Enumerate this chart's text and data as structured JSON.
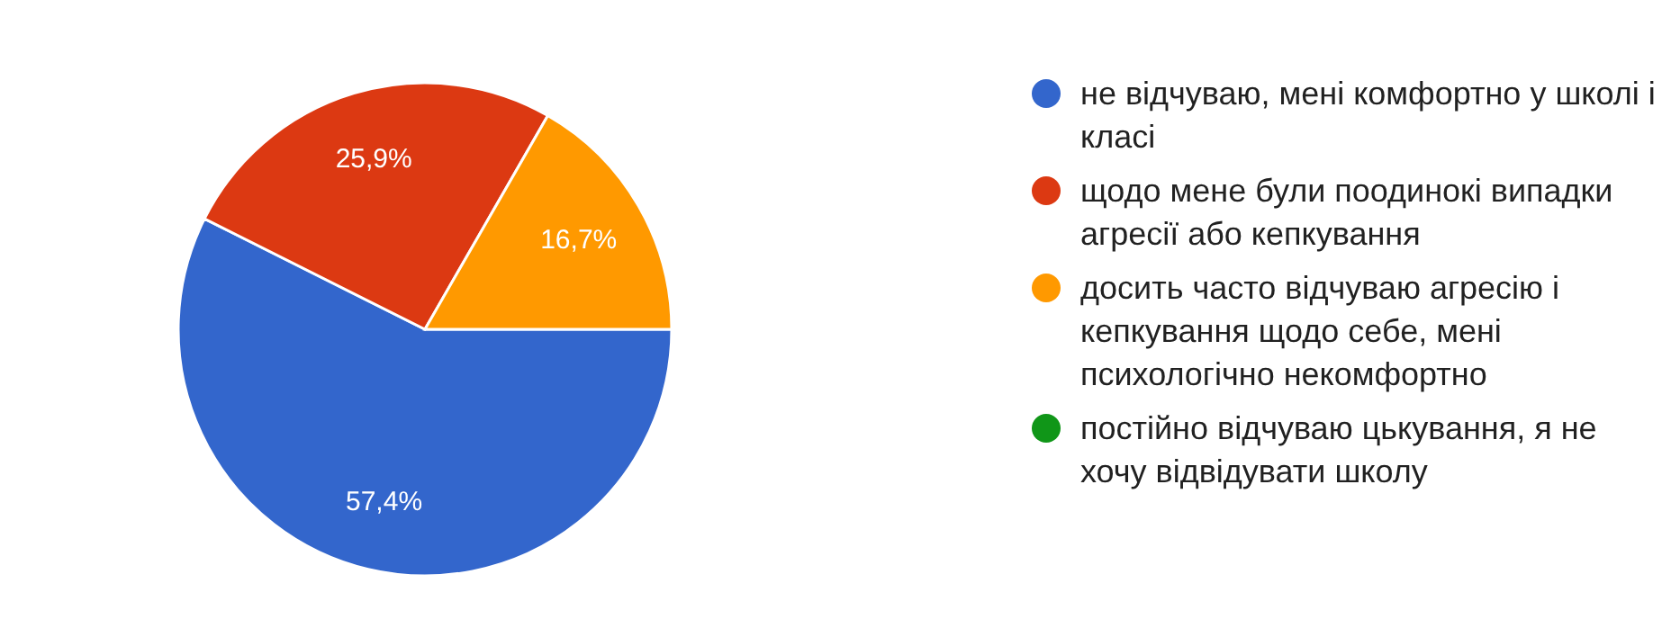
{
  "chart_data": {
    "type": "pie",
    "categories": [
      "не відчуваю, мені комфортно у школі і класі",
      "щодо мене були поодинокі випадки агресії або кепкування",
      "досить часто відчуваю агресію і кепкування щодо себе, мені психологічно некомфортно",
      "постійно відчуваю цькування, я не хочу відвідувати школу"
    ],
    "values": [
      57.4,
      25.9,
      16.7,
      0
    ],
    "colors": [
      "#3366cc",
      "#dc3912",
      "#ff9900",
      "#109618"
    ],
    "value_labels": [
      "57,4%",
      "25,9%",
      "16,7%",
      null
    ],
    "legend": "right"
  }
}
